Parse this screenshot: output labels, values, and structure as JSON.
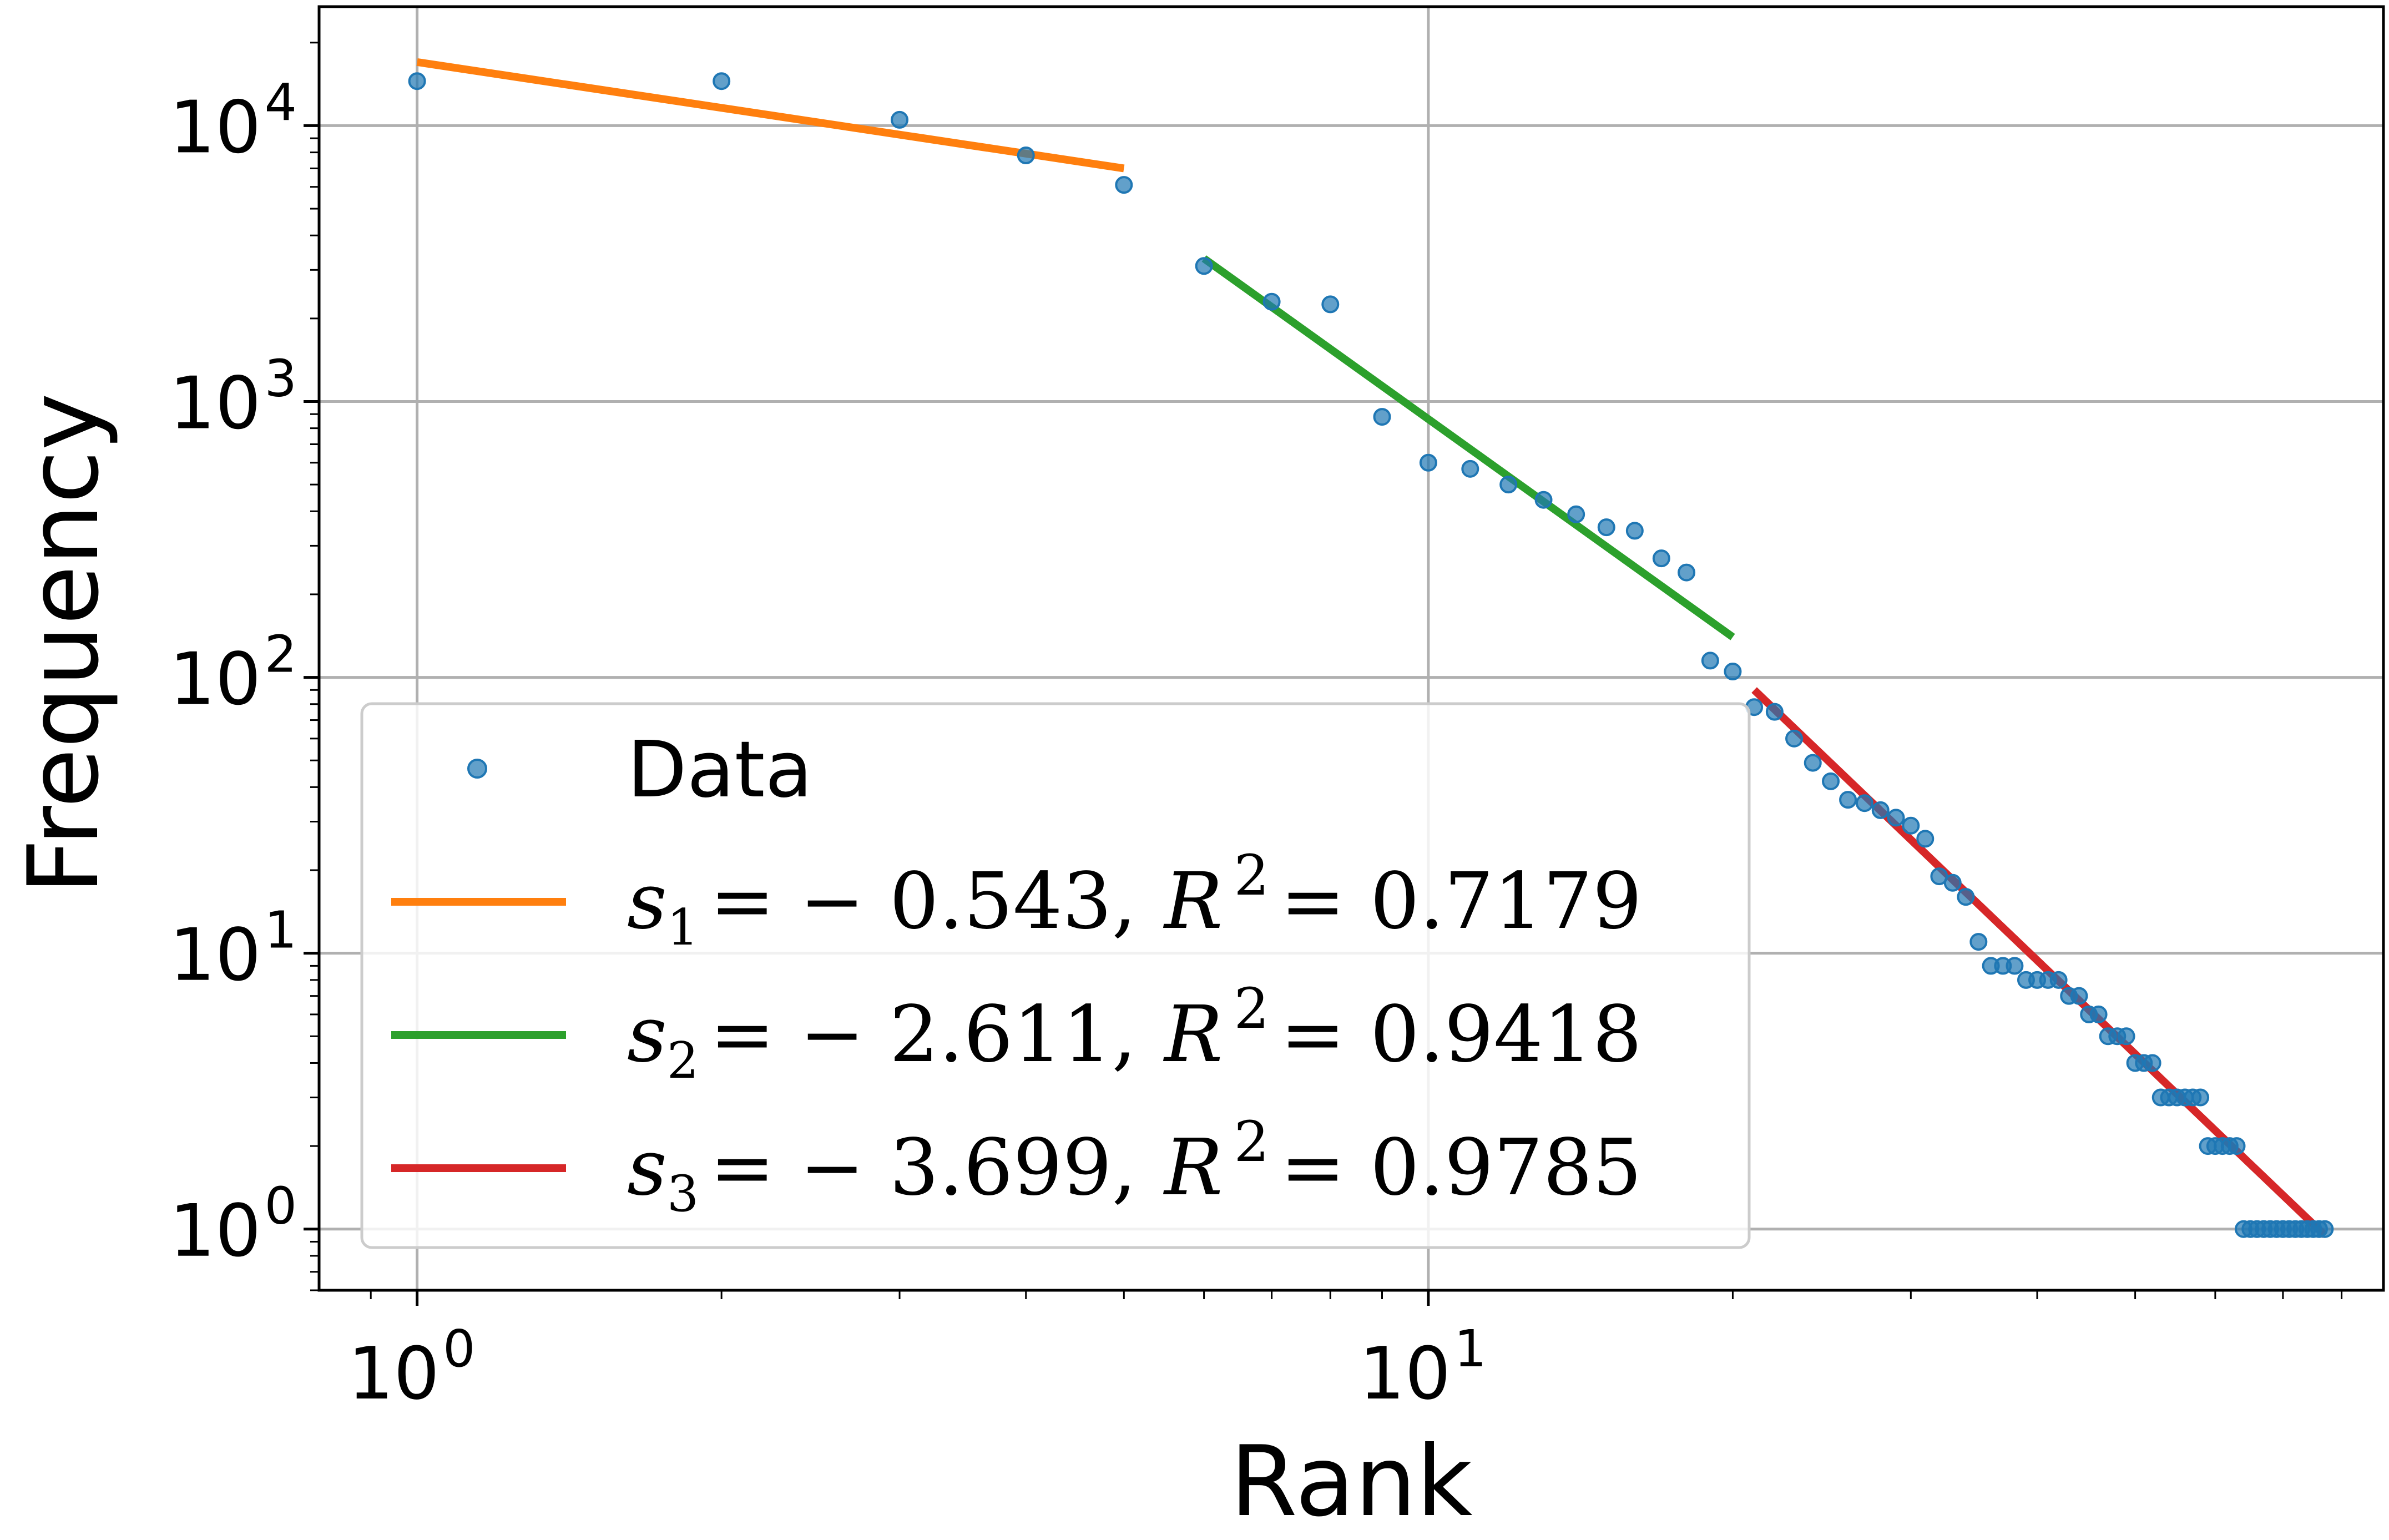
{
  "chart_data": {
    "type": "scatter",
    "xscale": "log",
    "yscale": "log",
    "xlabel": "Rank",
    "ylabel": "Frequency",
    "xlim": [
      0.8,
      88
    ],
    "ylim": [
      0.6,
      27000
    ],
    "grid": true,
    "legend_position": "lower-left",
    "x_ticks": [
      {
        "base": "10",
        "exp": "0",
        "value": 1
      },
      {
        "base": "10",
        "exp": "1",
        "value": 10
      }
    ],
    "y_ticks": [
      {
        "base": "10",
        "exp": "0",
        "value": 1
      },
      {
        "base": "10",
        "exp": "1",
        "value": 10
      },
      {
        "base": "10",
        "exp": "2",
        "value": 100
      },
      {
        "base": "10",
        "exp": "3",
        "value": 1000
      },
      {
        "base": "10",
        "exp": "4",
        "value": 10000
      }
    ],
    "series": [
      {
        "name": "Data",
        "kind": "scatter",
        "color": "#1f77b4",
        "x": [
          1,
          2,
          3,
          4,
          5,
          6,
          7,
          8,
          9,
          10,
          11,
          12,
          13,
          14,
          15,
          16,
          17,
          18,
          19,
          20,
          21,
          22,
          23,
          24,
          25,
          26,
          27,
          28,
          29,
          30,
          31,
          32,
          33,
          34,
          35,
          36,
          37,
          38,
          39,
          40,
          41,
          42,
          43,
          44,
          45,
          46,
          47,
          48,
          49,
          50,
          51,
          52,
          53,
          54,
          55,
          56,
          57,
          58,
          59,
          60,
          61,
          62,
          63,
          64,
          65,
          66,
          67,
          68,
          69,
          70,
          71,
          72,
          73,
          74,
          75,
          76,
          77
        ],
        "y": [
          14500,
          14500,
          10500,
          7800,
          6100,
          3100,
          2300,
          2250,
          880,
          600,
          570,
          500,
          440,
          390,
          350,
          340,
          270,
          240,
          115,
          105,
          78,
          75,
          60,
          49,
          42,
          36,
          35,
          33,
          31,
          29,
          26,
          19,
          18,
          16,
          11,
          9,
          9,
          9,
          8,
          8,
          8,
          8,
          7,
          7,
          6,
          6,
          5,
          5,
          5,
          4,
          4,
          4,
          3,
          3,
          3,
          3,
          3,
          3,
          2,
          2,
          2,
          2,
          2,
          1,
          1,
          1,
          1,
          1,
          1,
          1,
          1,
          1,
          1,
          1,
          1,
          1,
          1
        ]
      },
      {
        "name": "s1_fit",
        "kind": "line",
        "color": "#ff7f0e",
        "x": [
          1,
          5
        ],
        "y": [
          17000,
          7000
        ],
        "label_var": "s",
        "label_sub": "1",
        "label_eq": "= − 0.543,",
        "label_r": "R",
        "label_rsup": "2",
        "label_rval": "= 0.7179"
      },
      {
        "name": "s2_fit",
        "kind": "line",
        "color": "#2ca02c",
        "x": [
          6,
          20
        ],
        "y": [
          3300,
          140
        ],
        "label_var": "s",
        "label_sub": "2",
        "label_eq": "= − 2.611,",
        "label_r": "R",
        "label_rsup": "2",
        "label_rval": "= 0.9418"
      },
      {
        "name": "s3_fit",
        "kind": "line",
        "color": "#d62728",
        "x": [
          21,
          77
        ],
        "y": [
          90,
          0.95
        ],
        "label_var": "s",
        "label_sub": "3",
        "label_eq": "= − 3.699,",
        "label_r": "R",
        "label_rsup": "2",
        "label_rval": "= 0.9785"
      }
    ]
  }
}
